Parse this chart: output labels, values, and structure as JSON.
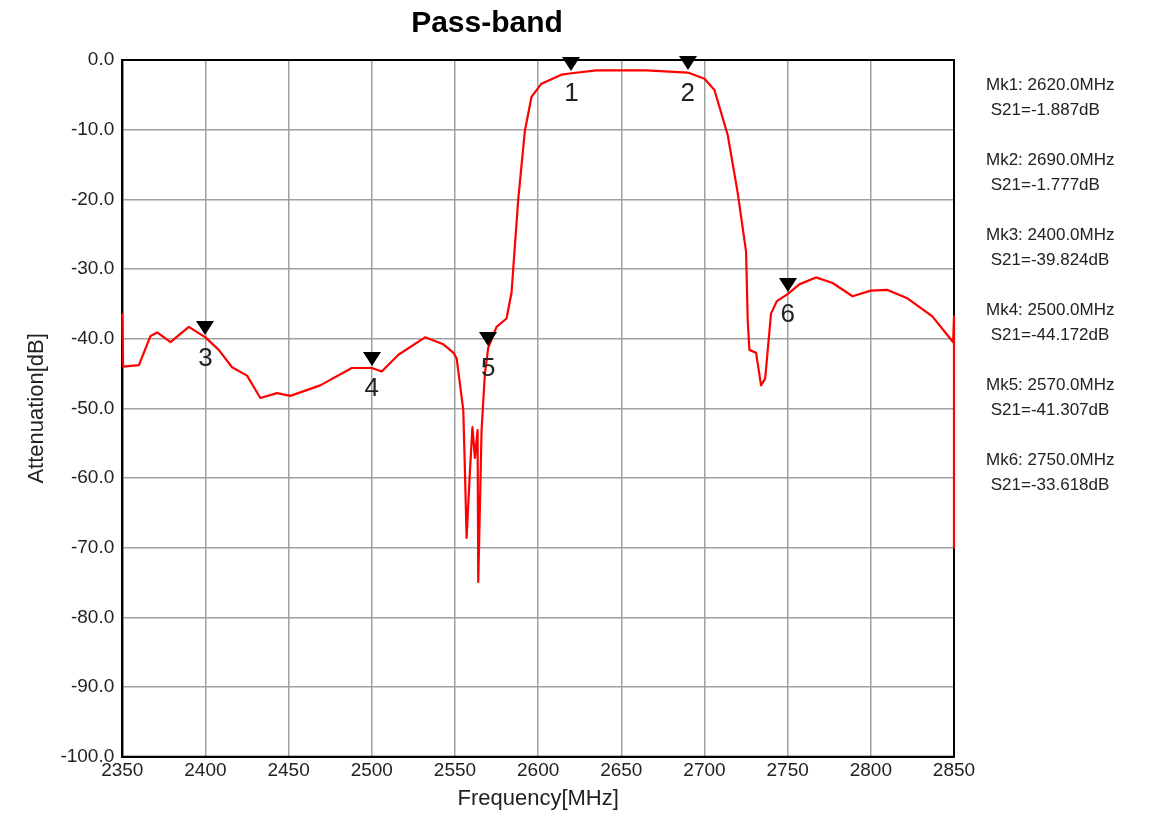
{
  "chart_data": {
    "type": "line",
    "title": "Pass-band",
    "xlabel": "Frequency[MHz]",
    "ylabel": "Attenuation[dB]",
    "xlim": [
      2350,
      2850
    ],
    "xticks": [
      2350,
      2400,
      2450,
      2500,
      2550,
      2600,
      2650,
      2700,
      2750,
      2800,
      2850
    ],
    "ylim": [
      -100,
      0
    ],
    "yticks": [
      {
        "value": 0,
        "label": "0.0"
      },
      {
        "value": -10,
        "label": "-10.0"
      },
      {
        "value": -20,
        "label": "-20.0"
      },
      {
        "value": -30,
        "label": "-30.0"
      },
      {
        "value": -40,
        "label": "-40.0"
      },
      {
        "value": -50,
        "label": "-50.0"
      },
      {
        "value": -60,
        "label": "-60.0"
      },
      {
        "value": -70,
        "label": "-70.0"
      },
      {
        "value": -80,
        "label": "-80.0"
      },
      {
        "value": -90,
        "label": "-90.0"
      },
      {
        "value": -100,
        "label": "-100.0"
      }
    ],
    "grid": true,
    "legend": false,
    "marker": "none",
    "line_style": "solid",
    "series": [
      {
        "color": "#ff0000",
        "x": [
          2350,
          2350.5,
          2360,
          2367,
          2371,
          2379,
          2390,
          2400,
          2408,
          2416,
          2425,
          2433,
          2443,
          2451,
          2469,
          2488,
          2500,
          2506,
          2516,
          2532,
          2543,
          2549,
          2551,
          2555,
          2556,
          2557,
          2559,
          2560.5,
          2562,
          2563.6,
          2564,
          2566,
          2568,
          2570,
          2575,
          2581,
          2584,
          2588,
          2592,
          2596,
          2602,
          2614,
          2620,
          2635,
          2665,
          2690,
          2700,
          2706,
          2714,
          2720,
          2725,
          2726,
          2727,
          2731,
          2734,
          2736.5,
          2740,
          2743.5,
          2750,
          2757,
          2767,
          2777,
          2789,
          2800,
          2810,
          2822,
          2837,
          2849.5,
          2850,
          2850
        ],
        "values": [
          -36.5,
          -44,
          -43.8,
          -39.6,
          -39.1,
          -40.5,
          -38.3,
          -39.8,
          -41.6,
          -44.1,
          -45.3,
          -48.5,
          -47.8,
          -48.2,
          -46.7,
          -44.2,
          -44.2,
          -44.7,
          -42.3,
          -39.8,
          -40.8,
          -42,
          -42.8,
          -50.2,
          -59,
          -68.6,
          -59,
          -52.7,
          -57.1,
          -53.1,
          -74.9,
          -53.1,
          -45,
          -41.3,
          -38.3,
          -37.1,
          -33.4,
          -20.1,
          -10.2,
          -5.3,
          -3.4,
          -2.1,
          -1.9,
          -1.5,
          -1.5,
          -1.8,
          -2.7,
          -4.3,
          -10.8,
          -19.1,
          -27.5,
          -37.4,
          -41.6,
          -42,
          -46.7,
          -45.7,
          -36.4,
          -34.6,
          -33.6,
          -32.2,
          -31.2,
          -32,
          -33.9,
          -33.1,
          -33,
          -34.2,
          -36.8,
          -40.5,
          -36.8,
          -70
        ]
      }
    ],
    "annotations": [
      {
        "text": "1",
        "x": 2620,
        "y": -1.887
      },
      {
        "text": "2",
        "x": 2690,
        "y": -1.777
      },
      {
        "text": "3",
        "x": 2400,
        "y": -39.824
      },
      {
        "text": "4",
        "x": 2500,
        "y": -44.172
      },
      {
        "text": "5",
        "x": 2570,
        "y": -41.307
      },
      {
        "text": "6",
        "x": 2750,
        "y": -33.618
      },
      "Mk1: 2620.0MHz",
      " S21=-1.887dB",
      "Mk2: 2690.0MHz",
      " S21=-1.777dB",
      "Mk3: 2400.0MHz",
      " S21=-39.824dB",
      "Mk4: 2500.0MHz",
      " S21=-44.172dB",
      "Mk5: 2570.0MHz",
      " S21=-41.307dB",
      "Mk6: 2750.0MHz",
      " S21=-33.618dB"
    ]
  }
}
